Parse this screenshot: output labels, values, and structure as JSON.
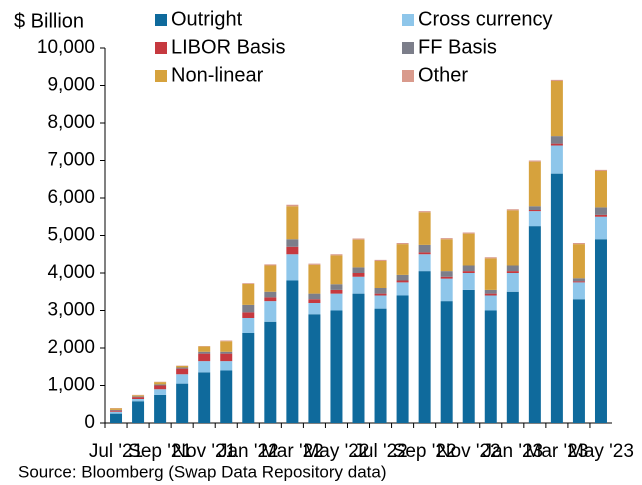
{
  "chart_data": {
    "type": "stacked_bar",
    "y_label": "$ Billion",
    "source": "Source: Bloomberg (Swap Data Repository data)",
    "categories": [
      "Jul '21",
      null,
      "Sep '21",
      null,
      "Nov '21",
      null,
      "Jan '22",
      null,
      "Mar '22",
      null,
      "May '22",
      null,
      "Jul '22",
      null,
      "Sep '22",
      null,
      "Nov '22",
      null,
      "Jan '23",
      null,
      "Mar '23",
      null,
      "May '23"
    ],
    "series": [
      {
        "name": "Outright",
        "color": "#0f6a9c",
        "values": [
          250,
          580,
          750,
          1050,
          1350,
          1400,
          2400,
          2700,
          3800,
          2900,
          3000,
          3450,
          3050,
          3400,
          4050,
          3250,
          3550,
          3000,
          3500,
          5250,
          6650,
          3300,
          4900
        ]
      },
      {
        "name": "Cross currency",
        "color": "#8ec6ea",
        "values": [
          50,
          60,
          150,
          250,
          300,
          250,
          400,
          550,
          700,
          300,
          450,
          450,
          350,
          350,
          450,
          600,
          450,
          400,
          500,
          400,
          750,
          450,
          600
        ]
      },
      {
        "name": "LIBOR Basis",
        "color": "#c6393f",
        "values": [
          30,
          50,
          100,
          150,
          200,
          200,
          150,
          100,
          200,
          100,
          100,
          100,
          50,
          50,
          50,
          50,
          50,
          50,
          50,
          30,
          50,
          30,
          50
        ]
      },
      {
        "name": "FF Basis",
        "color": "#7c7e8a",
        "values": [
          20,
          20,
          30,
          30,
          50,
          50,
          200,
          150,
          200,
          150,
          150,
          150,
          150,
          150,
          200,
          150,
          150,
          100,
          150,
          100,
          200,
          80,
          200
        ]
      },
      {
        "name": "Non-linear",
        "color": "#d6a23d",
        "values": [
          40,
          30,
          60,
          40,
          140,
          280,
          560,
          700,
          880,
          770,
          770,
          740,
          720,
          820,
          870,
          850,
          850,
          840,
          1470,
          1190,
          1470,
          910,
          970
        ]
      },
      {
        "name": "Other",
        "color": "#d99a8c",
        "values": [
          10,
          10,
          10,
          10,
          10,
          20,
          20,
          30,
          40,
          30,
          30,
          30,
          30,
          30,
          30,
          30,
          30,
          30,
          30,
          30,
          30,
          30,
          30
        ]
      }
    ],
    "ylim": [
      0,
      10000
    ],
    "yticks": [
      0,
      {
        "value": 1000,
        "label": "1,000"
      },
      {
        "value": 2000,
        "label": "2,000"
      },
      {
        "value": 3000,
        "label": "3,000"
      },
      {
        "value": 4000,
        "label": "4,000"
      },
      {
        "value": 5000,
        "label": "5,000"
      },
      {
        "value": 6000,
        "label": "6,000"
      },
      {
        "value": 7000,
        "label": "7,000"
      },
      {
        "value": 8000,
        "label": "8,000"
      },
      {
        "value": 9000,
        "label": "9,000"
      },
      {
        "value": 10000,
        "label": "10,000"
      }
    ]
  }
}
